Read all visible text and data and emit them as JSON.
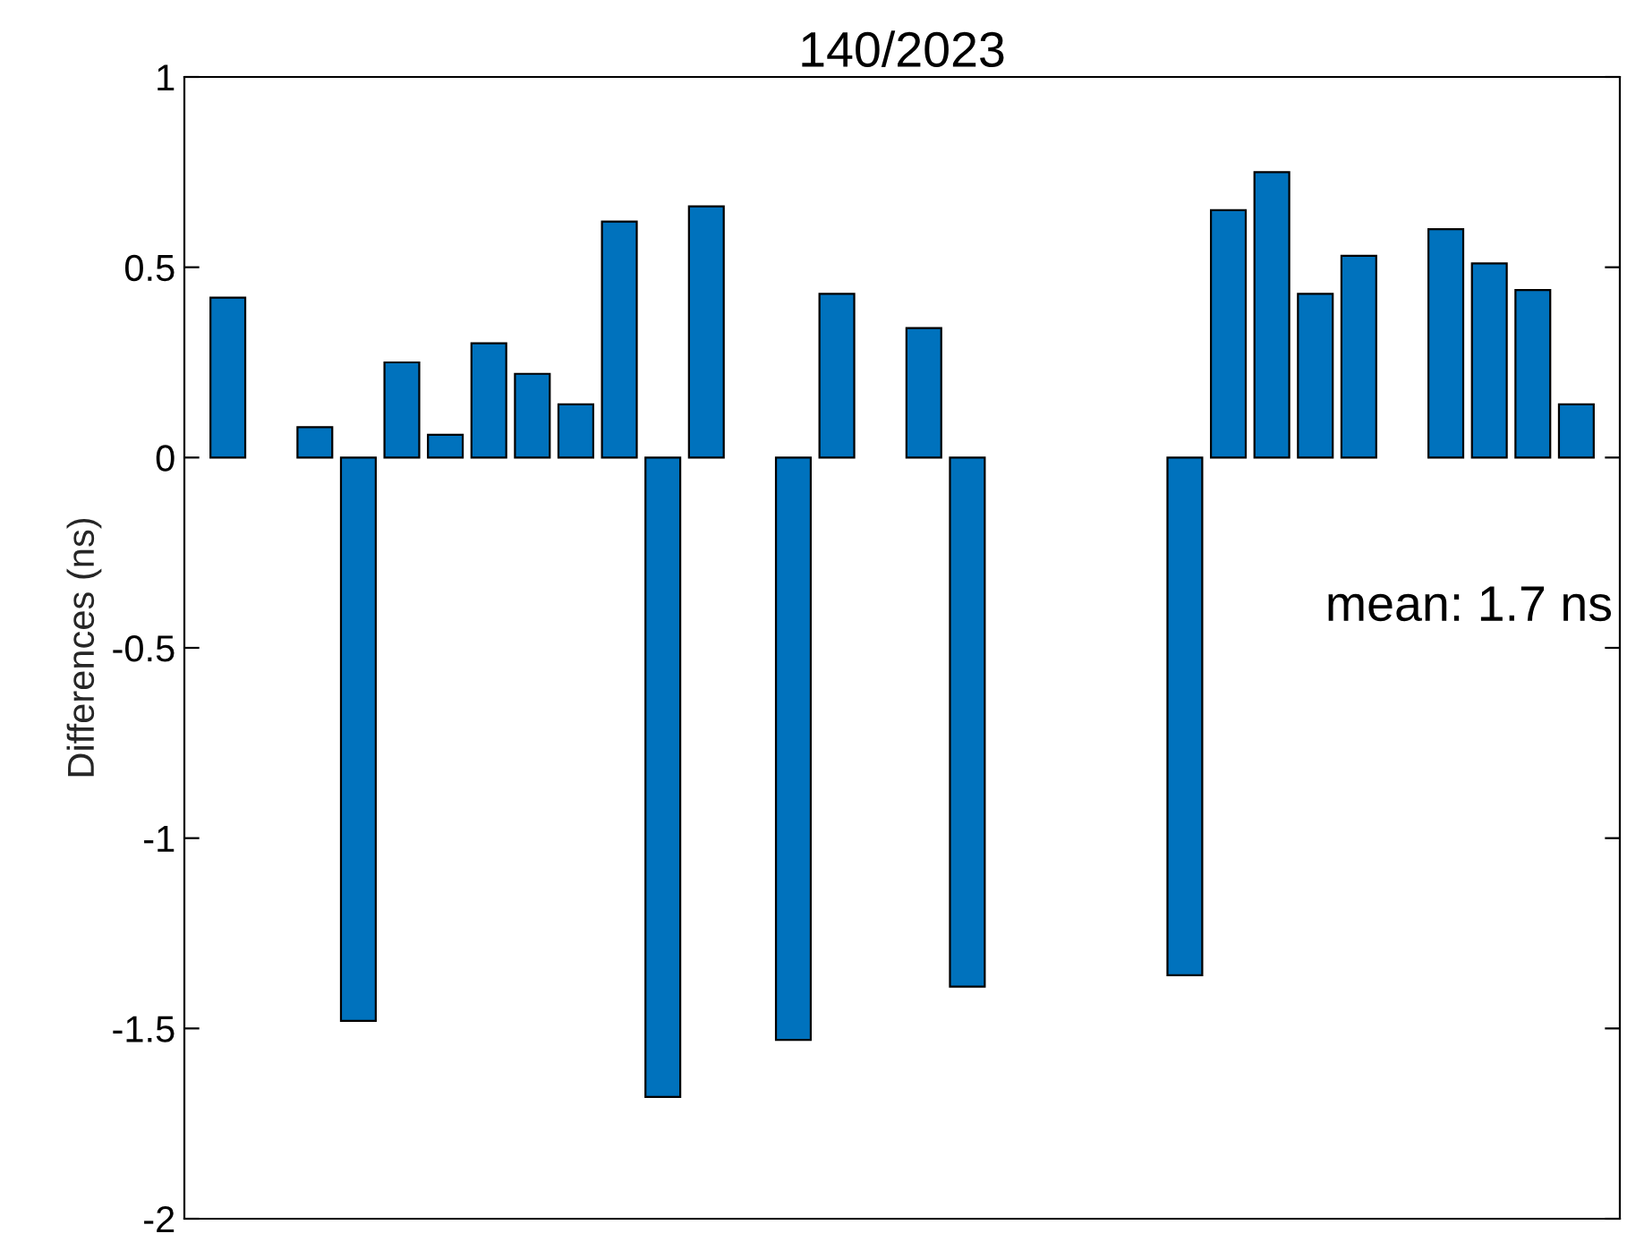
{
  "chart_data": {
    "type": "bar",
    "title": "140/2023",
    "ylabel": "Differences (ns)",
    "categories": [
      null,
      null,
      null,
      null,
      null,
      null,
      null,
      null,
      null,
      null,
      null,
      null,
      null,
      null,
      null,
      null,
      null,
      null,
      null,
      null,
      null,
      null,
      null,
      null,
      null,
      null,
      null,
      null,
      null,
      null,
      null,
      null
    ],
    "values": [
      0.42,
      null,
      0.08,
      -1.48,
      0.25,
      0.06,
      0.3,
      0.22,
      0.14,
      0.62,
      -1.68,
      0.66,
      null,
      -1.53,
      0.43,
      null,
      0.34,
      -1.39,
      null,
      null,
      null,
      null,
      -1.36,
      0.65,
      0.75,
      0.43,
      0.53,
      null,
      0.6,
      0.51,
      0.44,
      0.14
    ],
    "color": "#0072bd",
    "ylim": [
      -2,
      1
    ],
    "yticks": [
      -2,
      -1.5,
      -1,
      -0.5,
      0,
      0.5,
      1
    ],
    "grid": false,
    "annotations": [
      "mean: 1.7 ns"
    ]
  }
}
